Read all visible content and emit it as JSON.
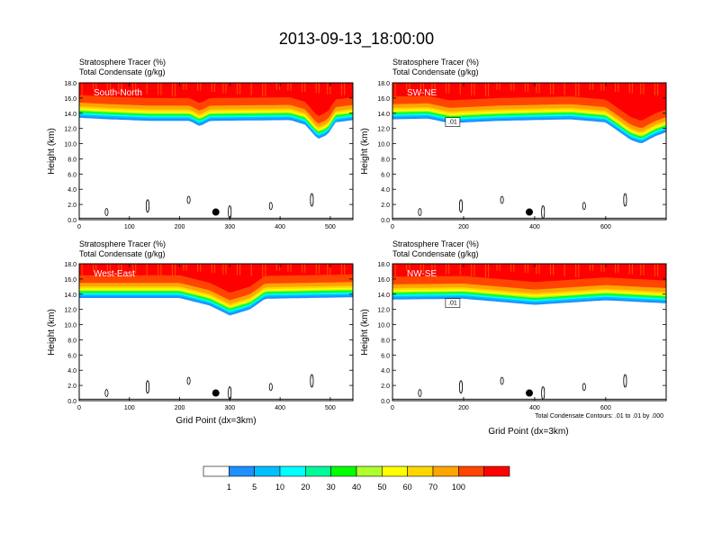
{
  "title": "2013-09-13_18:00:00",
  "panel_header_line1": "Stratosphere Tracer   (%)",
  "panel_header_line2": "Total Condensate   (g/kg)",
  "ylabel": "Height (km)",
  "xlabel": "Grid Point (dx=3km)",
  "contour_note": "Total Condensate Contours: .01 to .01 by .000",
  "colorbar": {
    "colors": [
      "#ffffff",
      "#1e90ff",
      "#00bfff",
      "#00ffff",
      "#00fa9a",
      "#00ff00",
      "#adff2f",
      "#ffff00",
      "#ffd700",
      "#ffa500",
      "#ff4500",
      "#ff0000"
    ],
    "labels": [
      "1",
      "5",
      "10",
      "20",
      "30",
      "40",
      "50",
      "60",
      "70",
      "100"
    ]
  },
  "chart_data": [
    {
      "type": "heatmap",
      "name": "South-North",
      "xlim": [
        0,
        545
      ],
      "ylim": [
        0,
        18
      ],
      "xticks": [
        0,
        100,
        200,
        300,
        400,
        500
      ],
      "yticks": [
        0,
        2,
        4,
        6,
        8,
        10,
        12,
        14,
        16,
        18
      ],
      "tropopause": [
        [
          0,
          13.4
        ],
        [
          60,
          13.2
        ],
        [
          140,
          13.0
        ],
        [
          220,
          13.0
        ],
        [
          240,
          12.3
        ],
        [
          260,
          13.0
        ],
        [
          420,
          13.1
        ],
        [
          450,
          12.5
        ],
        [
          475,
          10.6
        ],
        [
          495,
          11.2
        ],
        [
          510,
          12.8
        ],
        [
          545,
          13.1
        ]
      ],
      "contour_label": "",
      "marker": {
        "x": 272,
        "y": 1.0
      }
    },
    {
      "type": "heatmap",
      "name": "SW-NE",
      "xlim": [
        0,
        770
      ],
      "ylim": [
        0,
        18
      ],
      "xticks": [
        0,
        200,
        400,
        600
      ],
      "yticks": [
        0,
        2,
        4,
        6,
        8,
        10,
        12,
        14,
        16,
        18
      ],
      "tropopause": [
        [
          0,
          13.2
        ],
        [
          100,
          13.3
        ],
        [
          160,
          12.7
        ],
        [
          300,
          13.0
        ],
        [
          500,
          13.2
        ],
        [
          600,
          12.8
        ],
        [
          670,
          10.5
        ],
        [
          700,
          10.0
        ],
        [
          740,
          11.0
        ],
        [
          770,
          11.5
        ]
      ],
      "contour_label": ".01",
      "marker": {
        "x": 385,
        "y": 1.0
      }
    },
    {
      "type": "heatmap",
      "name": "West-East",
      "xlim": [
        0,
        545
      ],
      "ylim": [
        0,
        18
      ],
      "xticks": [
        0,
        100,
        200,
        300,
        400,
        500
      ],
      "yticks": [
        0,
        2,
        4,
        6,
        8,
        10,
        12,
        14,
        16,
        18
      ],
      "tropopause": [
        [
          0,
          13.5
        ],
        [
          200,
          13.5
        ],
        [
          260,
          12.5
        ],
        [
          300,
          11.2
        ],
        [
          340,
          12.0
        ],
        [
          370,
          13.4
        ],
        [
          545,
          13.6
        ]
      ],
      "contour_label": "",
      "marker": {
        "x": 272,
        "y": 1.0
      }
    },
    {
      "type": "heatmap",
      "name": "NW-SE",
      "xlim": [
        0,
        770
      ],
      "ylim": [
        0,
        18
      ],
      "xticks": [
        0,
        200,
        400,
        600
      ],
      "yticks": [
        0,
        2,
        4,
        6,
        8,
        10,
        12,
        14,
        16,
        18
      ],
      "tropopause": [
        [
          0,
          13.3
        ],
        [
          200,
          13.4
        ],
        [
          400,
          12.6
        ],
        [
          600,
          13.2
        ],
        [
          770,
          12.8
        ]
      ],
      "contour_label": ".01",
      "marker": {
        "x": 385,
        "y": 1.0
      }
    }
  ]
}
